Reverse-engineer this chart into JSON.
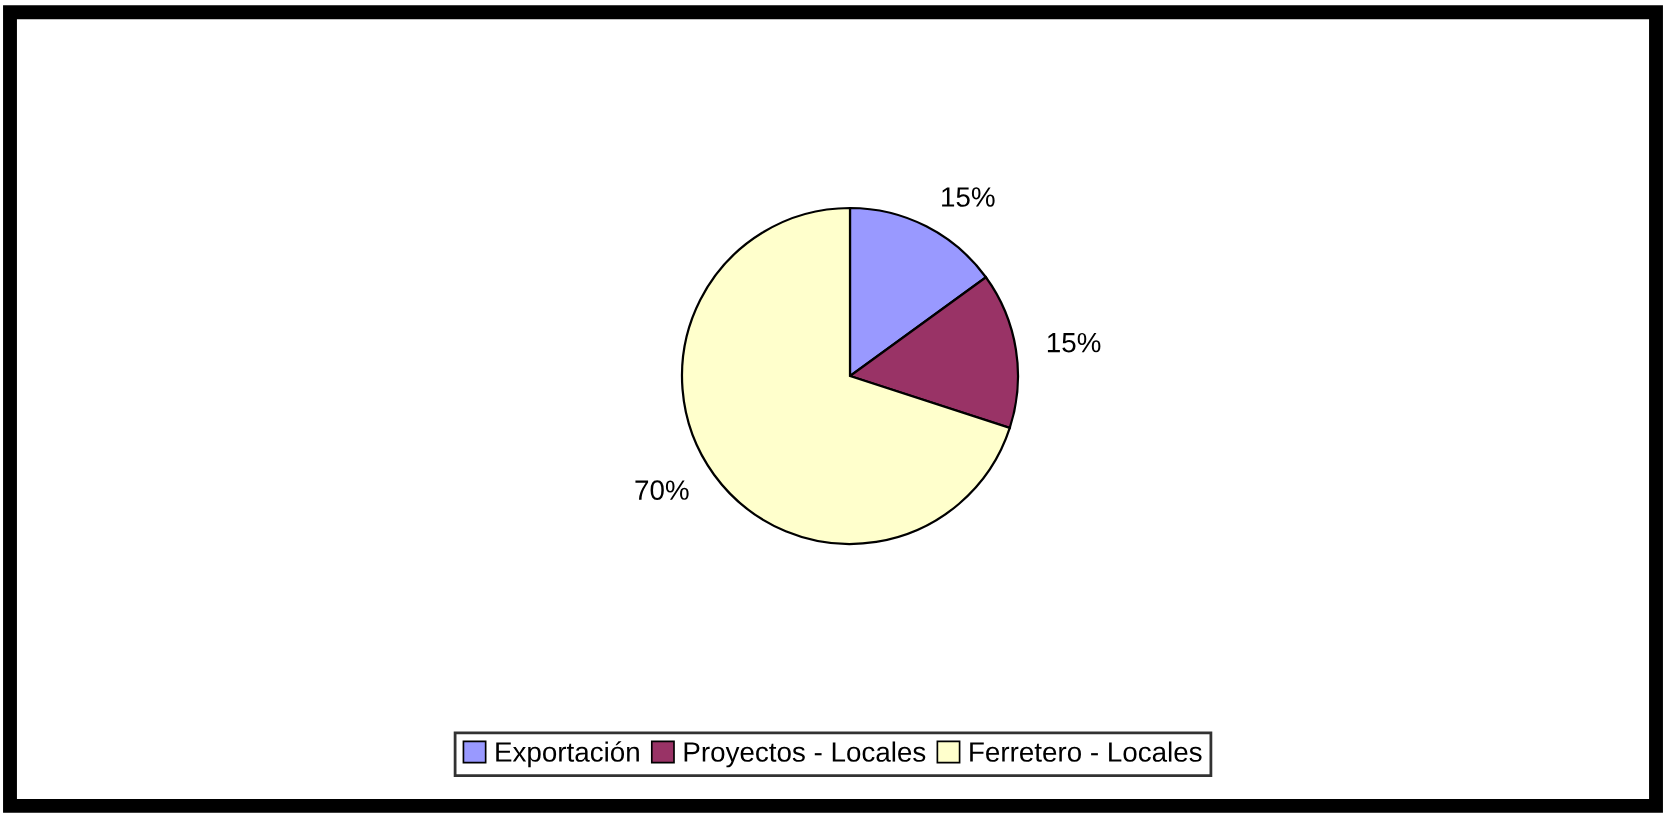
{
  "chart_data": {
    "type": "pie",
    "categories": [
      "Exportación",
      "Proyectos - Locales",
      "Ferretero - Locales"
    ],
    "values": [
      15,
      15,
      70
    ],
    "colors": [
      "#9999ff",
      "#993366",
      "#ffffcc"
    ],
    "value_labels": [
      "15%",
      "15%",
      "70%"
    ],
    "legend": "bottom"
  }
}
